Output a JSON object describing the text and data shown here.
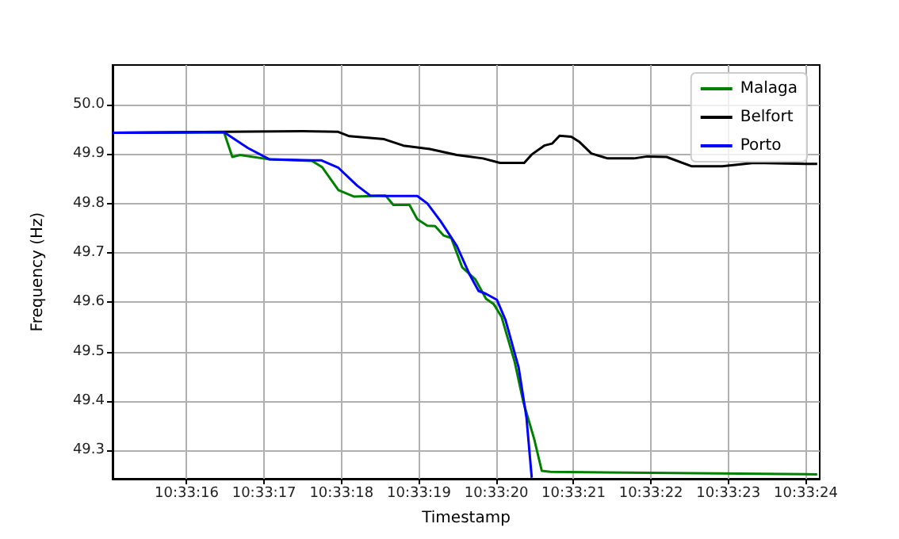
{
  "chart_data": {
    "type": "line",
    "xlabel": "Timestamp",
    "ylabel": "Frequency (Hz)",
    "xlim": [
      10.554178,
      10.556717
    ],
    "ylim": [
      49.243,
      50.08
    ],
    "xticks": [
      {
        "value": 10.554444,
        "label": "10:33:16"
      },
      {
        "value": 10.554722,
        "label": "10:33:17"
      },
      {
        "value": 10.555,
        "label": "10:33:18"
      },
      {
        "value": 10.555278,
        "label": "10:33:19"
      },
      {
        "value": 10.555556,
        "label": "10:33:20"
      },
      {
        "value": 10.555833,
        "label": "10:33:21"
      },
      {
        "value": 10.556111,
        "label": "10:33:22"
      },
      {
        "value": 10.556389,
        "label": "10:33:23"
      },
      {
        "value": 10.556667,
        "label": "10:33:24"
      }
    ],
    "yticks": [
      49.3,
      49.4,
      49.5,
      49.6,
      49.7,
      49.8,
      49.9,
      {
        "value": 50.0,
        "label": "50.0"
      }
    ],
    "grid": true,
    "legend": "top right",
    "series": [
      {
        "name": "Malaga",
        "color": "#008000",
        "x": [
          10.554178,
          10.554578,
          10.554608,
          10.554636,
          10.554742,
          10.554894,
          10.554931,
          10.554989,
          10.555044,
          10.555158,
          10.555186,
          10.555244,
          10.555272,
          10.555308,
          10.555336,
          10.555367,
          10.555394,
          10.555433,
          10.555481,
          10.555519,
          10.555547,
          10.555575,
          10.555622,
          10.555653,
          10.555692,
          10.555719,
          10.55575,
          10.556111,
          10.556708
        ],
        "values": [
          49.943,
          49.944,
          49.894,
          49.898,
          49.889,
          49.886,
          49.873,
          49.827,
          49.814,
          49.816,
          49.797,
          49.797,
          49.768,
          49.755,
          49.754,
          49.735,
          49.73,
          49.671,
          49.646,
          49.607,
          49.596,
          49.57,
          49.479,
          49.398,
          49.323,
          49.259,
          49.257,
          49.255,
          49.252
        ]
      },
      {
        "name": "Belfort",
        "color": "#000000",
        "x": [
          10.554178,
          10.554583,
          10.554861,
          10.554986,
          10.555028,
          10.555153,
          10.555222,
          10.555317,
          10.555414,
          10.555508,
          10.555569,
          10.555656,
          10.555683,
          10.555728,
          10.555756,
          10.555783,
          10.555825,
          10.555853,
          10.555897,
          10.555956,
          10.55605,
          10.556097,
          10.556167,
          10.556258,
          10.556367,
          10.556481,
          10.556667,
          10.556708
        ],
        "values": [
          49.943,
          49.945,
          49.946,
          49.945,
          49.936,
          49.93,
          49.917,
          49.91,
          49.898,
          49.891,
          49.882,
          49.882,
          49.899,
          49.917,
          49.921,
          49.937,
          49.935,
          49.925,
          49.901,
          49.891,
          49.891,
          49.895,
          49.894,
          49.875,
          49.875,
          49.882,
          49.88,
          49.88
        ]
      },
      {
        "name": "Porto",
        "color": "#0000ff",
        "x": [
          10.554178,
          10.554578,
          10.554664,
          10.554742,
          10.554894,
          10.554928,
          10.554989,
          10.555056,
          10.555103,
          10.555158,
          10.555272,
          10.555308,
          10.555356,
          10.555414,
          10.555461,
          10.555492,
          10.555519,
          10.555558,
          10.555589,
          10.555636,
          10.555664,
          10.555683
        ],
        "values": [
          49.943,
          49.944,
          49.912,
          49.889,
          49.887,
          49.887,
          49.872,
          49.836,
          49.816,
          49.815,
          49.815,
          49.8,
          49.764,
          49.714,
          49.655,
          49.623,
          49.617,
          49.605,
          49.564,
          49.468,
          49.367,
          49.245
        ]
      }
    ]
  }
}
